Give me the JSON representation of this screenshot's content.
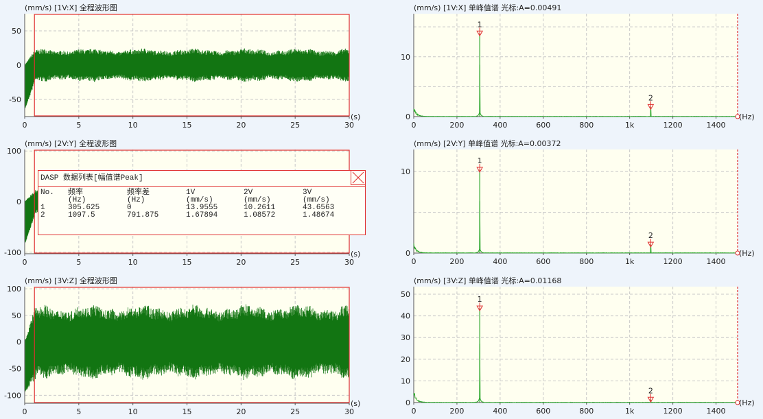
{
  "colors": {
    "waveform": "#127512",
    "spectrum": "#2aa62a",
    "cursor": "#e03030",
    "plot_bg": "#fffff0",
    "grid": "#c8c8c8"
  },
  "chart_data": [
    {
      "type": "line",
      "title": "(mm/s) [1V:X] 全程波形图",
      "xlabel": "(s)",
      "xlim": [
        0,
        30
      ],
      "ylim": [
        -75,
        75
      ],
      "xticks": [
        "0",
        "5",
        "10",
        "15",
        "20",
        "25",
        "30"
      ],
      "yticks": [
        {
          "v": 50,
          "label": "50"
        },
        {
          "v": 0,
          "label": "0"
        },
        {
          "v": -50,
          "label": "-50"
        }
      ],
      "envelope_amplitude": 20,
      "startup_min": -65,
      "cursor_start_s": 0.9,
      "grid": true
    },
    {
      "type": "line",
      "title": "(mm/s) [2V:Y] 全程波形图",
      "xlabel": "(s)",
      "xlim": [
        0,
        30
      ],
      "ylim": [
        -103,
        103
      ],
      "xticks": [
        "0",
        "5",
        "10",
        "15",
        "20",
        "25",
        "30"
      ],
      "yticks": [
        {
          "v": 100,
          "label": "100"
        },
        {
          "v": 0,
          "label": "0"
        },
        {
          "v": -100,
          "label": "-100"
        }
      ],
      "envelope_amplitude": 20,
      "startup_min": -85,
      "cursor_start_s": 0.9,
      "grid": true
    },
    {
      "type": "line",
      "title": "(mm/s) [3V:Z] 全程波形图",
      "xlabel": "(s)",
      "xlim": [
        0,
        30
      ],
      "ylim": [
        -115,
        104
      ],
      "xticks": [
        "0",
        "5",
        "10",
        "15",
        "20",
        "25",
        "30"
      ],
      "yticks": [
        {
          "v": 100,
          "label": "100"
        },
        {
          "v": 50,
          "label": "50"
        },
        {
          "v": 0,
          "label": "0"
        },
        {
          "v": -50,
          "label": "-50"
        },
        {
          "v": -100,
          "label": "-100"
        }
      ],
      "envelope_amplitude": 58,
      "startup_min": -95,
      "cursor_start_s": 0.9,
      "grid": true
    },
    {
      "type": "line",
      "title": "(mm/s) [1V:X] 单峰值谱 光标:A=0.00491",
      "xlabel": "(Hz)",
      "xlim": [
        0,
        1500
      ],
      "ylim": [
        0,
        17.2
      ],
      "xticks": [
        {
          "v": 0,
          "label": "0"
        },
        {
          "v": 200,
          "label": "200"
        },
        {
          "v": 400,
          "label": "400"
        },
        {
          "v": 600,
          "label": "600"
        },
        {
          "v": 800,
          "label": "800"
        },
        {
          "v": 1000,
          "label": "1k"
        },
        {
          "v": 1200,
          "label": "1200"
        },
        {
          "v": 1400,
          "label": "1400"
        }
      ],
      "yticks": [
        {
          "v": 0,
          "label": "0"
        },
        {
          "v": 10,
          "label": "10"
        }
      ],
      "ygrid_step": 5,
      "peaks": [
        {
          "label": "1",
          "x": 305.625,
          "y": 13.9555
        },
        {
          "label": "2",
          "x": 1097.5,
          "y": 1.67894
        }
      ],
      "cursor_x": 1500,
      "grid": true
    },
    {
      "type": "line",
      "title": "(mm/s) [2V:Y] 单峰值谱 光标:A=0.00372",
      "xlabel": "(Hz)",
      "xlim": [
        0,
        1500
      ],
      "ylim": [
        0,
        12.7
      ],
      "xticks": [
        {
          "v": 0,
          "label": "0"
        },
        {
          "v": 200,
          "label": "200"
        },
        {
          "v": 400,
          "label": "400"
        },
        {
          "v": 600,
          "label": "600"
        },
        {
          "v": 800,
          "label": "800"
        },
        {
          "v": 1000,
          "label": "1k"
        },
        {
          "v": 1200,
          "label": "1200"
        },
        {
          "v": 1400,
          "label": "1400"
        }
      ],
      "yticks": [
        {
          "v": 0,
          "label": "0"
        },
        {
          "v": 10,
          "label": "10"
        }
      ],
      "ygrid_step": 5,
      "peaks": [
        {
          "label": "1",
          "x": 305.625,
          "y": 10.2611
        },
        {
          "label": "2",
          "x": 1097.5,
          "y": 1.08572
        }
      ],
      "cursor_x": 1500,
      "grid": true
    },
    {
      "type": "line",
      "title": "(mm/s) [3V:Z] 单峰值谱 光标:A=0.01168",
      "xlabel": "(Hz)",
      "xlim": [
        0,
        1500
      ],
      "ylim": [
        0,
        53.5
      ],
      "xticks": [
        {
          "v": 0,
          "label": "0"
        },
        {
          "v": 200,
          "label": "200"
        },
        {
          "v": 400,
          "label": "400"
        },
        {
          "v": 600,
          "label": "600"
        },
        {
          "v": 800,
          "label": "800"
        },
        {
          "v": 1000,
          "label": "1k"
        },
        {
          "v": 1200,
          "label": "1200"
        },
        {
          "v": 1400,
          "label": "1400"
        }
      ],
      "yticks": [
        {
          "v": 0,
          "label": "0"
        },
        {
          "v": 10,
          "label": "10"
        },
        {
          "v": 20,
          "label": "20"
        },
        {
          "v": 30,
          "label": "30"
        },
        {
          "v": 40,
          "label": "40"
        },
        {
          "v": 50,
          "label": "50"
        }
      ],
      "ygrid_step": 10,
      "peaks": [
        {
          "label": "1",
          "x": 305.625,
          "y": 43.6563
        },
        {
          "label": "2",
          "x": 1097.5,
          "y": 1.48674
        }
      ],
      "cursor_x": 1500,
      "grid": true
    }
  ],
  "data_table": {
    "title": "DASP 数据列表[幅值谱Peak]",
    "header_top": [
      "No.",
      "频率",
      "频率差",
      "1V",
      "2V",
      "3V"
    ],
    "header_units": [
      "",
      "(Hz)",
      "(Hz)",
      "(mm/s)",
      "(mm/s)",
      "(mm/s)"
    ],
    "rows": [
      [
        "1",
        "305.625",
        "0",
        "13.9555",
        "10.2611",
        "43.6563"
      ],
      [
        "2",
        "1097.5",
        "791.875",
        "1.67894",
        "1.08572",
        "1.48674"
      ]
    ]
  }
}
